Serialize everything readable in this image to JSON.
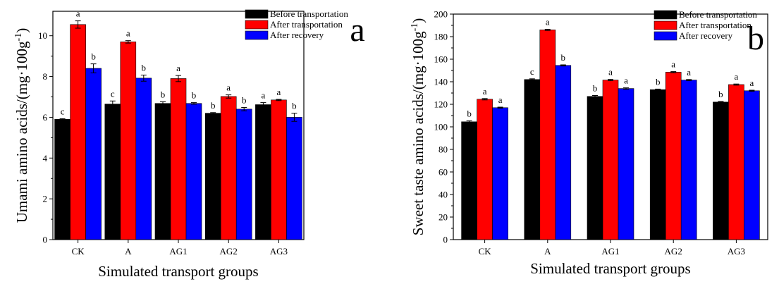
{
  "colors": {
    "before": "#000000",
    "after_transport": "#ff0000",
    "after_recovery": "#0000ff"
  },
  "chart_data": [
    {
      "type": "bar",
      "panel_letter": "a",
      "categories": [
        "CK",
        "A",
        "AG1",
        "AG2",
        "AG3"
      ],
      "xlabel": "Simulated transport groups",
      "ylabel": "Umami amino acids/(mg·100g",
      "ylabel_sup": "-1",
      "ylabel_end": ")",
      "ylim": [
        0,
        11.2
      ],
      "yticks": [
        0,
        2,
        4,
        6,
        8,
        10
      ],
      "legend_position": "top-right",
      "series": [
        {
          "name": "Before transportation",
          "values": [
            5.9,
            6.65,
            6.68,
            6.2,
            6.62
          ],
          "errors": [
            0.03,
            0.15,
            0.08,
            0.03,
            0.1
          ],
          "labels": [
            "c",
            "c",
            "b",
            "b",
            "a"
          ]
        },
        {
          "name": "After transportation",
          "values": [
            10.55,
            9.7,
            7.9,
            7.02,
            6.85
          ],
          "errors": [
            0.18,
            0.06,
            0.15,
            0.08,
            0.03
          ],
          "labels": [
            "a",
            "a",
            "a",
            "a",
            "a"
          ]
        },
        {
          "name": "After recovery",
          "values": [
            8.4,
            7.92,
            6.68,
            6.4,
            6.0
          ],
          "errors": [
            0.22,
            0.15,
            0.04,
            0.08,
            0.2
          ],
          "labels": [
            "b",
            "b",
            "b",
            "b",
            "b"
          ]
        }
      ]
    },
    {
      "type": "bar",
      "panel_letter": "b",
      "categories": [
        "CK",
        "A",
        "AG1",
        "AG2",
        "AG3"
      ],
      "xlabel": "Simulated transport groups",
      "ylabel": "Sweet taste amino acids/(mg·100g",
      "ylabel_sup": "-1",
      "ylabel_end": ")",
      "ylim": [
        0,
        200
      ],
      "yticks": [
        0,
        20,
        40,
        60,
        80,
        100,
        120,
        140,
        160,
        180,
        200
      ],
      "legend_position": "top-right",
      "series": [
        {
          "name": "Before transportation",
          "values": [
            104.5,
            142,
            127,
            133,
            122
          ],
          "errors": [
            0.8,
            0.6,
            0.8,
            0.5,
            0.5
          ],
          "labels": [
            "b",
            "c",
            "b",
            "b",
            "b"
          ]
        },
        {
          "name": "After transportation",
          "values": [
            124.5,
            186,
            141.5,
            148.5,
            137.5
          ],
          "errors": [
            0.6,
            0.5,
            0.6,
            0.5,
            0.5
          ],
          "labels": [
            "a",
            "a",
            "a",
            "a",
            "a"
          ]
        },
        {
          "name": "After recovery",
          "values": [
            117,
            154.5,
            134,
            141.5,
            132
          ],
          "errors": [
            0.5,
            0.5,
            0.6,
            0.5,
            0.5
          ],
          "labels": [
            "a",
            "b",
            "a",
            "a",
            "a"
          ]
        }
      ]
    }
  ]
}
